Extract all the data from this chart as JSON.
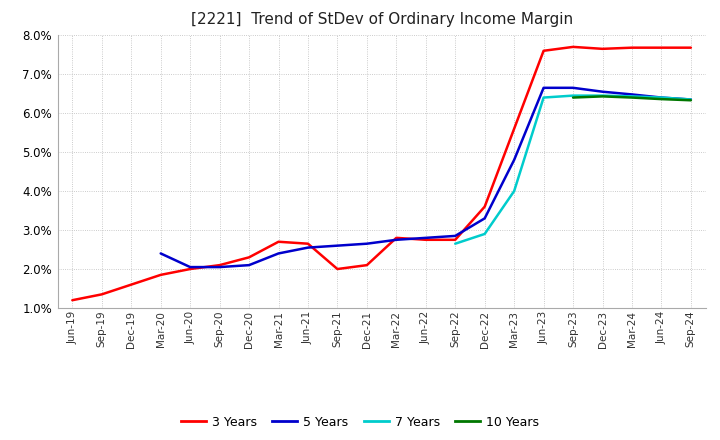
{
  "title": "[2221]  Trend of StDev of Ordinary Income Margin",
  "ylim": [
    0.01,
    0.08
  ],
  "yticks": [
    0.01,
    0.02,
    0.03,
    0.04,
    0.05,
    0.06,
    0.07,
    0.08
  ],
  "background_color": "#ffffff",
  "grid_color": "#bbbbbb",
  "series": {
    "3 Years": {
      "color": "#ff0000",
      "data": [
        [
          "Jun-19",
          0.012
        ],
        [
          "Sep-19",
          0.0135
        ],
        [
          "Dec-19",
          0.016
        ],
        [
          "Mar-20",
          0.0185
        ],
        [
          "Jun-20",
          0.02
        ],
        [
          "Sep-20",
          0.021
        ],
        [
          "Dec-20",
          0.023
        ],
        [
          "Mar-21",
          0.027
        ],
        [
          "Jun-21",
          0.0265
        ],
        [
          "Sep-21",
          0.02
        ],
        [
          "Dec-21",
          0.021
        ],
        [
          "Mar-22",
          0.028
        ],
        [
          "Jun-22",
          0.0275
        ],
        [
          "Sep-22",
          0.0275
        ],
        [
          "Dec-22",
          0.036
        ],
        [
          "Mar-23",
          0.056
        ],
        [
          "Jun-23",
          0.076
        ],
        [
          "Sep-23",
          0.077
        ],
        [
          "Dec-23",
          0.0765
        ],
        [
          "Mar-24",
          0.0768
        ],
        [
          "Jun-24",
          0.0768
        ],
        [
          "Sep-24",
          0.0768
        ]
      ]
    },
    "5 Years": {
      "color": "#0000cc",
      "data": [
        [
          "Mar-20",
          0.024
        ],
        [
          "Jun-20",
          0.0205
        ],
        [
          "Sep-20",
          0.0205
        ],
        [
          "Dec-20",
          0.021
        ],
        [
          "Mar-21",
          0.024
        ],
        [
          "Jun-21",
          0.0255
        ],
        [
          "Sep-21",
          0.026
        ],
        [
          "Dec-21",
          0.0265
        ],
        [
          "Mar-22",
          0.0275
        ],
        [
          "Jun-22",
          0.028
        ],
        [
          "Sep-22",
          0.0285
        ],
        [
          "Dec-22",
          0.033
        ],
        [
          "Mar-23",
          0.048
        ],
        [
          "Jun-23",
          0.0665
        ],
        [
          "Sep-23",
          0.0665
        ],
        [
          "Dec-23",
          0.0655
        ],
        [
          "Mar-24",
          0.0648
        ],
        [
          "Jun-24",
          0.064
        ],
        [
          "Sep-24",
          0.0635
        ]
      ]
    },
    "7 Years": {
      "color": "#00cccc",
      "data": [
        [
          "Sep-22",
          0.0265
        ],
        [
          "Dec-22",
          0.029
        ],
        [
          "Mar-23",
          0.04
        ],
        [
          "Jun-23",
          0.064
        ],
        [
          "Sep-23",
          0.0645
        ],
        [
          "Dec-23",
          0.0645
        ],
        [
          "Mar-24",
          0.0643
        ],
        [
          "Jun-24",
          0.064
        ],
        [
          "Sep-24",
          0.0635
        ]
      ]
    },
    "10 Years": {
      "color": "#007700",
      "data": [
        [
          "Sep-23",
          0.064
        ],
        [
          "Dec-23",
          0.0643
        ],
        [
          "Mar-24",
          0.064
        ],
        [
          "Jun-24",
          0.0636
        ],
        [
          "Sep-24",
          0.0633
        ]
      ]
    }
  },
  "x_labels": [
    "Jun-19",
    "Sep-19",
    "Dec-19",
    "Mar-20",
    "Jun-20",
    "Sep-20",
    "Dec-20",
    "Mar-21",
    "Jun-21",
    "Sep-21",
    "Dec-21",
    "Mar-22",
    "Jun-22",
    "Sep-22",
    "Dec-22",
    "Mar-23",
    "Jun-23",
    "Sep-23",
    "Dec-23",
    "Mar-24",
    "Jun-24",
    "Sep-24"
  ]
}
